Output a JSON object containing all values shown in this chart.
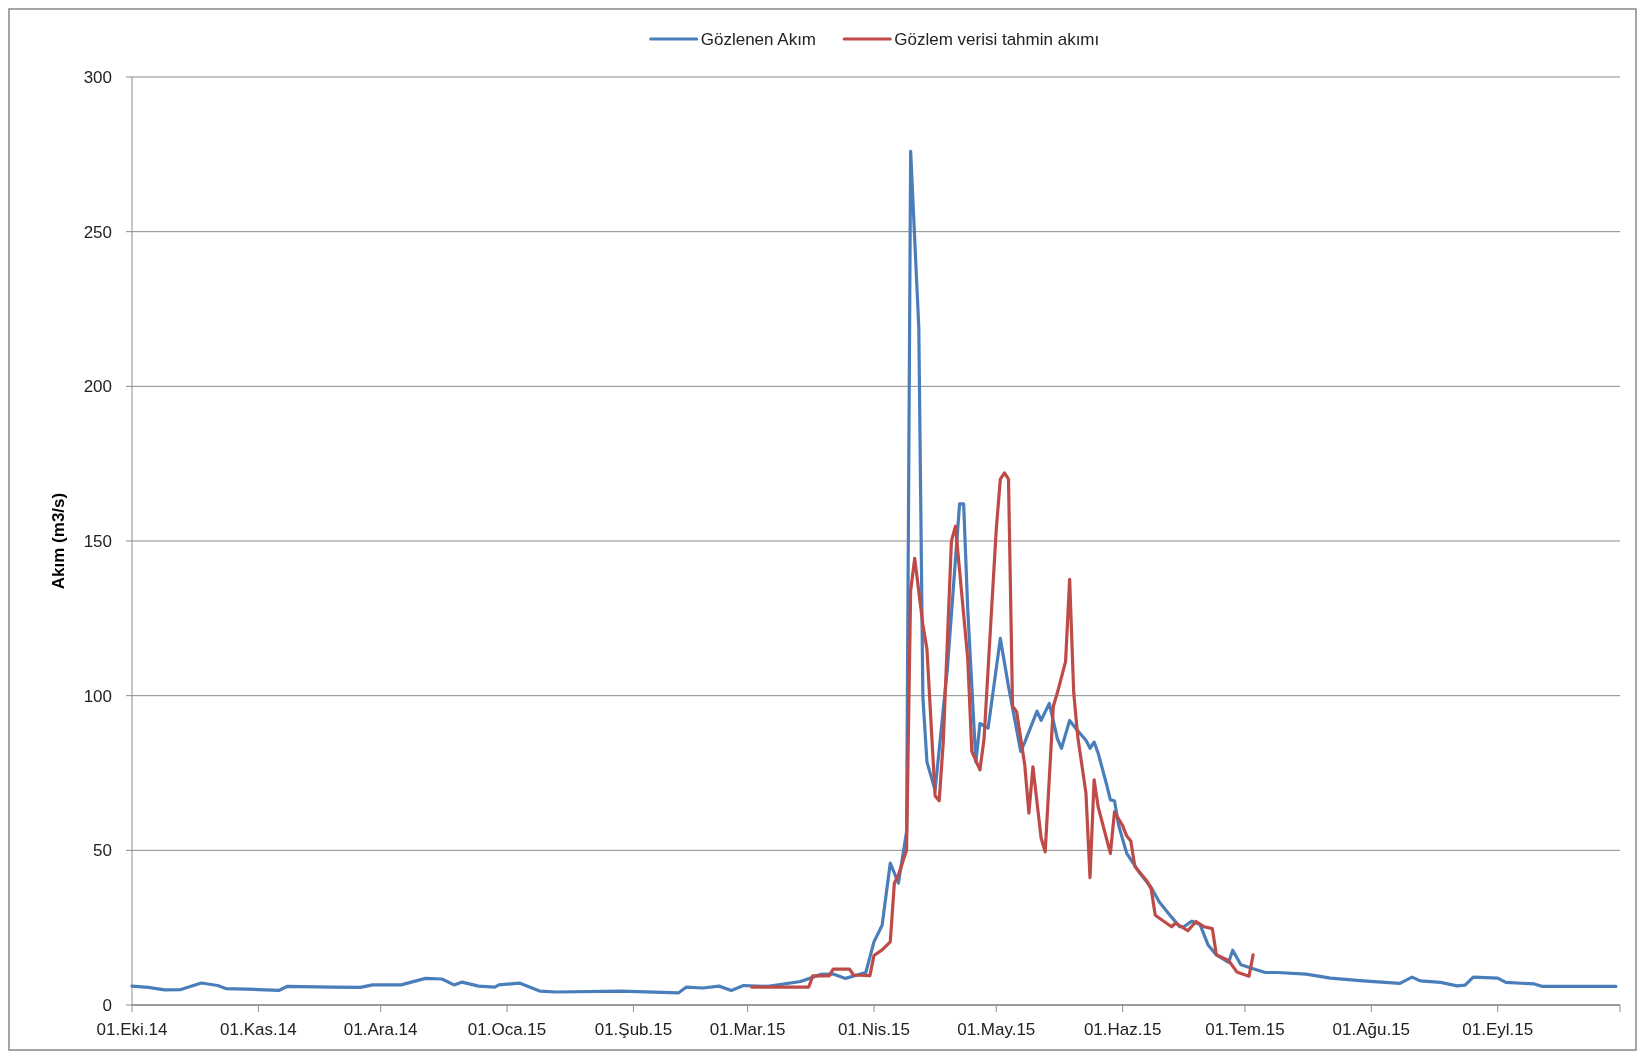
{
  "chart_data": {
    "type": "line",
    "ylabel": "Akım (m3/s)",
    "xlim": [
      "2014-10-01",
      "2015-10-01"
    ],
    "xticks": [
      {
        "value": "2014-10-01",
        "label": "01.Eki.14"
      },
      {
        "value": "2014-11-01",
        "label": "01.Kas.14"
      },
      {
        "value": "2014-12-01",
        "label": "01.Ara.14"
      },
      {
        "value": "2015-01-01",
        "label": "01.Oca.15"
      },
      {
        "value": "2015-02-01",
        "label": "01.Şub.15"
      },
      {
        "value": "2015-03-01",
        "label": "01.Mar.15"
      },
      {
        "value": "2015-04-01",
        "label": "01.Nis.15"
      },
      {
        "value": "2015-05-01",
        "label": "01.May.15"
      },
      {
        "value": "2015-06-01",
        "label": "01.Haz.15"
      },
      {
        "value": "2015-07-01",
        "label": "01.Tem.15"
      },
      {
        "value": "2015-08-01",
        "label": "01.Ağu.15"
      },
      {
        "value": "2015-09-01",
        "label": "01.Eyl.15"
      },
      {
        "value": "2015-10-01",
        "label": null
      }
    ],
    "ylim": [
      0,
      300
    ],
    "yticks": [
      0,
      50,
      100,
      150,
      200,
      250,
      300
    ],
    "grid": "y",
    "legend": "top",
    "marker": "none",
    "line_style": "solid",
    "series": [
      {
        "name": "Gözlenen Akım",
        "color": "#4a7ebb",
        "x": [
          "2014-10-01",
          "2014-10-05",
          "2014-10-09",
          "2014-10-13",
          "2014-10-18",
          "2014-10-22",
          "2014-10-24",
          "2014-11-01",
          "2014-11-06",
          "2014-11-08",
          "2014-11-19",
          "2014-11-26",
          "2014-11-29",
          "2014-12-06",
          "2014-12-12",
          "2014-12-16",
          "2014-12-19",
          "2014-12-21",
          "2014-12-25",
          "2014-12-29",
          "2014-12-30",
          "2015-01-04",
          "2015-01-09",
          "2015-01-13",
          "2015-01-29",
          "2015-02-12",
          "2015-02-14",
          "2015-02-18",
          "2015-02-22",
          "2015-02-25",
          "2015-02-28",
          "2015-03-06",
          "2015-03-14",
          "2015-03-19",
          "2015-03-22",
          "2015-03-25",
          "2015-03-30",
          "2015-04-01",
          "2015-04-03",
          "2015-04-05",
          "2015-04-07",
          "2015-04-09",
          "2015-04-10",
          "2015-04-12",
          "2015-04-13",
          "2015-04-14",
          "2015-04-16",
          "2015-04-19",
          "2015-04-22",
          "2015-04-23",
          "2015-04-24",
          "2015-04-26",
          "2015-04-27",
          "2015-04-29",
          "2015-05-02",
          "2015-05-04",
          "2015-05-07",
          "2015-05-08",
          "2015-05-11",
          "2015-05-12",
          "2015-05-14",
          "2015-05-16",
          "2015-05-17",
          "2015-05-19",
          "2015-05-21",
          "2015-05-23",
          "2015-05-24",
          "2015-05-25",
          "2015-05-26",
          "2015-05-28",
          "2015-05-29",
          "2015-05-30",
          "2015-05-31",
          "2015-06-02",
          "2015-06-05",
          "2015-06-08",
          "2015-06-10",
          "2015-06-13",
          "2015-06-15",
          "2015-06-16",
          "2015-06-18",
          "2015-06-20",
          "2015-06-22",
          "2015-06-24",
          "2015-06-27",
          "2015-06-28",
          "2015-06-30",
          "2015-07-04",
          "2015-07-06",
          "2015-07-09",
          "2015-07-16",
          "2015-07-22",
          "2015-07-30",
          "2015-08-08",
          "2015-08-11",
          "2015-08-13",
          "2015-08-18",
          "2015-08-22",
          "2015-08-24",
          "2015-08-26",
          "2015-09-01",
          "2015-09-03",
          "2015-09-10",
          "2015-09-12",
          "2015-09-30"
        ],
        "values": [
          6.1,
          5.7,
          4.9,
          5,
          7.1,
          6.3,
          5.3,
          5,
          4.7,
          6,
          5.8,
          5.7,
          6.5,
          6.5,
          8.6,
          8.4,
          6.5,
          7.4,
          6.1,
          5.8,
          6.5,
          7.1,
          4.5,
          4.2,
          4.5,
          3.9,
          5.8,
          5.5,
          6.1,
          4.7,
          6.3,
          6,
          7.6,
          9.9,
          10,
          8.6,
          10.5,
          20.4,
          25.8,
          45.9,
          39.4,
          56,
          276,
          219,
          99.5,
          78.5,
          69.5,
          108.6,
          162,
          162,
          128,
          78.5,
          91,
          89.5,
          118.5,
          103,
          82,
          85,
          95,
          92,
          97.5,
          86,
          83,
          92,
          88.6,
          85.6,
          83,
          85,
          81.4,
          71.6,
          66.3,
          66,
          58.2,
          49,
          43,
          38,
          33.3,
          28.4,
          25.3,
          25.3,
          27.1,
          26,
          19.3,
          16.2,
          13.8,
          17.7,
          13,
          11.3,
          10.5,
          10.5,
          10,
          8.7,
          7.8,
          7,
          9,
          7.8,
          7.3,
          6.2,
          6.4,
          9,
          8.7,
          7.3,
          6.8,
          6,
          6
        ]
      },
      {
        "name": "Gözlem verisi tahmin akımı",
        "color": "#be4b48",
        "x": [
          "2015-03-02",
          "2015-03-16",
          "2015-03-17",
          "2015-03-21",
          "2015-03-22",
          "2015-03-26",
          "2015-03-27",
          "2015-03-31",
          "2015-04-01",
          "2015-04-03",
          "2015-04-05",
          "2015-04-06",
          "2015-04-07",
          "2015-04-09",
          "2015-04-10",
          "2015-04-11",
          "2015-04-13",
          "2015-04-14",
          "2015-04-16",
          "2015-04-17",
          "2015-04-18",
          "2015-04-20",
          "2015-04-21",
          "2015-04-24",
          "2015-04-25",
          "2015-04-27",
          "2015-04-28",
          "2015-05-01",
          "2015-05-02",
          "2015-05-03",
          "2015-05-04",
          "2015-05-05",
          "2015-05-06",
          "2015-05-08",
          "2015-05-09",
          "2015-05-10",
          "2015-05-12",
          "2015-05-13",
          "2015-05-15",
          "2015-05-16",
          "2015-05-18",
          "2015-05-19",
          "2015-05-20",
          "2015-05-21",
          "2015-05-23",
          "2015-05-24",
          "2015-05-25",
          "2015-05-26",
          "2015-05-29",
          "2015-05-30",
          "2015-06-01",
          "2015-06-02",
          "2015-06-03",
          "2015-06-04",
          "2015-06-07",
          "2015-06-08",
          "2015-06-09",
          "2015-06-13",
          "2015-06-14",
          "2015-06-17",
          "2015-06-19",
          "2015-06-21",
          "2015-06-23",
          "2015-06-24",
          "2015-06-27",
          "2015-06-29",
          "2015-07-02",
          "2015-07-03"
        ],
        "values": [
          5.8,
          5.8,
          9.4,
          9.4,
          11.6,
          11.6,
          9.7,
          9.5,
          16,
          17.8,
          20.4,
          39.4,
          42,
          50,
          134,
          144.4,
          123,
          115,
          67.6,
          66,
          85,
          150,
          154.8,
          112,
          82,
          76,
          86,
          153.8,
          170,
          172,
          170,
          96.6,
          94.8,
          77.5,
          62,
          77,
          54,
          49.5,
          96.6,
          101,
          111,
          137.6,
          101,
          86.6,
          68.5,
          41.2,
          72.8,
          64,
          49,
          62.4,
          58,
          54.6,
          53,
          44.8,
          40,
          37.5,
          29,
          25.3,
          26.5,
          24,
          27,
          25.3,
          24.7,
          16.2,
          14.4,
          10.7,
          9.3,
          16.2
        ]
      }
    ]
  }
}
